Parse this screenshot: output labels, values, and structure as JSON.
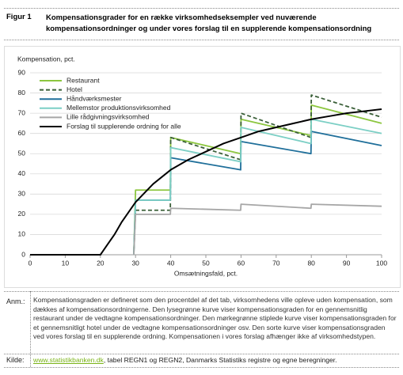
{
  "header": {
    "label": "Figur 1",
    "title": "Kompensationsgrader for en række virksomhedseksempler ved nuværende kompensationsordninger og under vores forslag til en supplerende kompensationsordning"
  },
  "chart_data": {
    "type": "line",
    "ylabel": "Kompensation, pct.",
    "xlabel": "Omsætningsfald, pct.",
    "xlim": [
      0,
      100
    ],
    "xticks": [
      0,
      10,
      20,
      30,
      40,
      50,
      60,
      70,
      80,
      90,
      100
    ],
    "ylim": [
      0,
      90
    ],
    "yticks": [
      0,
      10,
      20,
      30,
      40,
      50,
      60,
      70,
      80,
      90
    ],
    "grid": true,
    "legend": "upper-left",
    "series": [
      {
        "name": "Restaurant",
        "color": "#8cc63f",
        "dashed": false,
        "x": [
          29.5,
          30,
          39.9,
          40,
          59.9,
          60,
          79.9,
          80,
          100
        ],
        "values": [
          0,
          32,
          32,
          58,
          50,
          67,
          59,
          74,
          65
        ]
      },
      {
        "name": "Hotel",
        "color": "#3a5f38",
        "dashed": true,
        "x": [
          29.5,
          30,
          39.9,
          40,
          59.9,
          60,
          79.9,
          80,
          100
        ],
        "values": [
          0,
          22,
          22,
          58,
          47,
          70,
          58,
          79,
          68
        ]
      },
      {
        "name": "Håndværksmester",
        "color": "#1f6f9a",
        "dashed": false,
        "x": [
          29.5,
          30,
          39.9,
          40,
          59.9,
          60,
          79.9,
          80,
          100
        ],
        "values": [
          0,
          27,
          27,
          48,
          42,
          56,
          50,
          61,
          54
        ]
      },
      {
        "name": "Mellemstor produktionsvirksomhed",
        "color": "#7ccfc5",
        "dashed": false,
        "x": [
          29.5,
          30,
          39.9,
          40,
          59.9,
          60,
          79.9,
          80,
          100
        ],
        "values": [
          0,
          27,
          27,
          53,
          46,
          63,
          55,
          67,
          60
        ]
      },
      {
        "name": "Lille rådgivningsvirksomhed",
        "color": "#a6a6a6",
        "dashed": false,
        "x": [
          29.5,
          30,
          39.9,
          40,
          59.9,
          60,
          79.9,
          80,
          100
        ],
        "values": [
          0,
          20,
          20,
          23,
          22,
          25,
          23,
          25,
          24
        ]
      },
      {
        "name": "Forslag til supplerende ordning for alle",
        "color": "#000000",
        "dashed": false,
        "x": [
          0,
          20,
          22,
          24,
          26,
          28,
          30,
          35,
          40,
          45,
          50,
          55,
          60,
          65,
          70,
          75,
          80,
          85,
          90,
          95,
          100
        ],
        "values": [
          0,
          0,
          5,
          10,
          16,
          21,
          26,
          35,
          42,
          47,
          51,
          55,
          58,
          61,
          63,
          65,
          67,
          68.5,
          70,
          71,
          72
        ]
      }
    ]
  },
  "note": {
    "label": "Anm.:",
    "text": "Kompensationsgraden er defineret som den procentdel af det tab, virksomhedens ville opleve uden kompensation, som dækkes af kompensationsordningerne. Den lysegrønne kurve viser kompensationsgraden for en gennemsnitlig restaurant under de vedtagne kompensationsordninger. Den mørkegrønne stiplede kurve viser kompensationsgraden for et gennemsnitligt hotel under de vedtagne kompensationsordninger osv. Den sorte kurve viser kompensationsgraden ved vores forslag til en supplerende ordning. Kompensationen i vores forslag afhænger ikke af virksomhedstypen."
  },
  "source": {
    "label": "Kilde:",
    "link": "www.statistikbanken.dk",
    "text": ", tabel REGN1 og REGN2, Danmarks Statistiks registre og egne beregninger."
  }
}
